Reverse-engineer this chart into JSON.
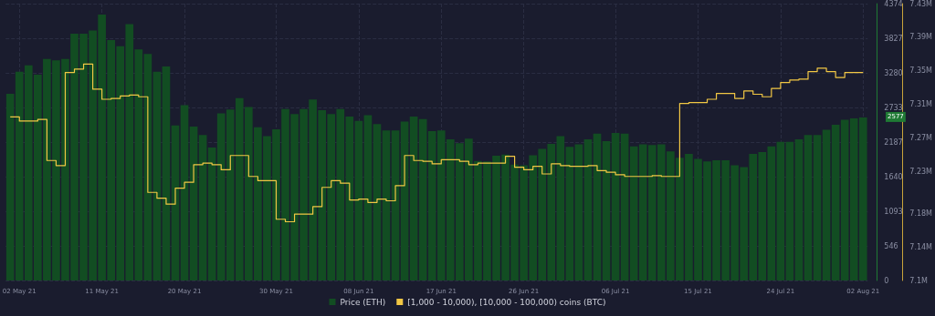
{
  "chart_data": {
    "type": "bar",
    "x": [
      "--05-01",
      "--05-02",
      "--05-03",
      "--05-04",
      "--05-05",
      "--05-06",
      "--05-07",
      "--05-08",
      "--05-09",
      "--05-10",
      "--05-11",
      "--05-12",
      "--05-13",
      "--05-14",
      "--05-15",
      "--05-16",
      "--05-17",
      "--05-18",
      "--05-19",
      "--05-20",
      "--05-21",
      "--05-22",
      "--05-23",
      "--05-24",
      "--05-25",
      "--05-26",
      "--05-27",
      "--05-28",
      "--05-29",
      "--05-30",
      "--05-31",
      "--06-01",
      "--06-02",
      "--06-03",
      "--06-04",
      "--06-05",
      "--06-06",
      "--06-07",
      "--06-08",
      "--06-09",
      "--06-10",
      "--06-11",
      "--06-12",
      "--06-13",
      "--06-14",
      "--06-15",
      "--06-16",
      "--06-17",
      "--06-18",
      "--06-19",
      "--06-20",
      "--06-21",
      "--06-22",
      "--06-23",
      "--06-24",
      "--06-25",
      "--06-26",
      "--06-27",
      "--06-28",
      "--06-29",
      "--06-30",
      "--07-01",
      "--07-02",
      "--07-03",
      "--07-04",
      "--07-05",
      "--07-06",
      "--07-07",
      "--07-08",
      "--07-09",
      "--07-10",
      "--07-11",
      "--07-12",
      "--07-13",
      "--07-14",
      "--07-15",
      "--07-16",
      "--07-17",
      "--07-18",
      "--07-19",
      "--07-20",
      "--07-21",
      "--07-22",
      "--07-23",
      "--07-24",
      "--07-25",
      "--07-26",
      "--07-27",
      "--07-28",
      "--07-29",
      "--07-30",
      "--07-31",
      "--08-01",
      "--08-02"
    ],
    "series": [
      {
        "name": "Price (ETH)",
        "color": "#124d22",
        "values": [
          2950,
          3300,
          3400,
          3250,
          3500,
          3480,
          3500,
          3900,
          3900,
          3950,
          4200,
          3800,
          3700,
          4050,
          3650,
          3580,
          3300,
          3380,
          2450,
          2770,
          2430,
          2300,
          2100,
          2640,
          2700,
          2880,
          2740,
          2420,
          2280,
          2390,
          2710,
          2630,
          2710,
          2860,
          2690,
          2630,
          2710,
          2590,
          2520,
          2610,
          2470,
          2370,
          2370,
          2510,
          2590,
          2550,
          2360,
          2370,
          2230,
          2170,
          2240,
          1890,
          1880,
          1970,
          1990,
          1830,
          1820,
          1980,
          2080,
          2160,
          2280,
          2110,
          2150,
          2230,
          2320,
          2200,
          2330,
          2320,
          2120,
          2150,
          2140,
          2150,
          2040,
          1940,
          2000,
          1920,
          1880,
          1900,
          1900,
          1820,
          1790,
          2000,
          2030,
          2120,
          2190,
          2190,
          2230,
          2300,
          2300,
          2380,
          2460,
          2540,
          2560,
          2577
        ]
      },
      {
        "name": "[1,000 - 10,000), [10,000 - 100,000) coins (BTC)",
        "type": "step",
        "axis": "y2",
        "color": "#f2c744",
        "x": [
          "--05-01",
          "--05-02",
          "--05-04",
          "--05-05",
          "--05-06",
          "--05-07",
          "--05-08",
          "--05-09",
          "--05-10",
          "--05-11",
          "--05-12",
          "--05-13",
          "--05-14",
          "--05-15",
          "--05-16",
          "--05-17",
          "--05-18",
          "--05-19",
          "--05-20",
          "--05-21",
          "--05-22",
          "--05-23",
          "--05-24",
          "--05-25",
          "--05-27",
          "--05-28",
          "--05-30",
          "--05-31",
          "--06-01",
          "--06-03",
          "--06-04",
          "--06-05",
          "--06-06",
          "--06-07",
          "--06-08",
          "--06-09",
          "--06-10",
          "--06-11",
          "--06-12",
          "--06-13",
          "--06-14",
          "--06-15",
          "--06-16",
          "--06-17",
          "--06-19",
          "--06-20",
          "--06-21",
          "--06-24",
          "--06-25",
          "--06-26",
          "--06-27",
          "--06-28",
          "--06-29",
          "--06-30",
          "--07-01",
          "--07-03",
          "--07-04",
          "--07-05",
          "--07-06",
          "--07-07",
          "--07-10",
          "--07-11",
          "--07-13",
          "--07-14",
          "--07-16",
          "--07-17",
          "--07-19",
          "--07-20",
          "--07-21",
          "--07-22",
          "--07-23",
          "--07-24",
          "--07-25",
          "--07-26",
          "--07-27",
          "--07-28",
          "--07-29",
          "--07-30",
          "--07-31",
          "--08-02"
        ],
        "values": [
          7.295,
          7.29,
          7.292,
          7.243,
          7.237,
          7.348,
          7.352,
          7.358,
          7.328,
          7.316,
          7.317,
          7.32,
          7.321,
          7.319,
          7.205,
          7.198,
          7.191,
          7.21,
          7.217,
          7.238,
          7.24,
          7.238,
          7.232,
          7.249,
          7.224,
          7.219,
          7.173,
          7.17,
          7.179,
          7.188,
          7.211,
          7.219,
          7.216,
          7.196,
          7.197,
          7.193,
          7.197,
          7.195,
          7.213,
          7.249,
          7.243,
          7.242,
          7.239,
          7.244,
          7.242,
          7.238,
          7.24,
          7.248,
          7.235,
          7.232,
          7.236,
          7.227,
          7.239,
          7.237,
          7.236,
          7.237,
          7.231,
          7.229,
          7.226,
          7.224,
          7.225,
          7.224,
          7.311,
          7.312,
          7.316,
          7.323,
          7.317,
          7.326,
          7.322,
          7.319,
          7.329,
          7.336,
          7.339,
          7.34,
          7.349,
          7.353,
          7.349,
          7.342,
          7.348,
          7.348
        ]
      }
    ],
    "xlim": [
      "--04-30T12:00",
      "--08-02T12:00"
    ],
    "xticks": [
      {
        "value": "--05-02",
        "label": "02 May 21"
      },
      {
        "value": "--05-11",
        "label": "11 May 21"
      },
      {
        "value": "--05-20",
        "label": "20 May 21"
      },
      {
        "value": "--05-30",
        "label": "30 May 21"
      },
      {
        "value": "--06-08",
        "label": "08 Jun 21"
      },
      {
        "value": "--06-17",
        "label": "17 Jun 21"
      },
      {
        "value": "--06-26",
        "label": "26 Jun 21"
      },
      {
        "value": "--07-06",
        "label": "06 Jul 21"
      },
      {
        "value": "--07-15",
        "label": "15 Jul 21"
      },
      {
        "value": "--07-24",
        "label": "24 Jul 21"
      },
      {
        "value": "--08-02",
        "label": "02 Aug 21"
      }
    ],
    "ylim": [
      0,
      4374
    ],
    "yticks": [
      0,
      546,
      1093,
      1640,
      2187,
      2733,
      3280,
      3827,
      4374
    ],
    "y2lim": [
      7.1,
      7.43
    ],
    "y2ticks": [
      {
        "value": 7.1,
        "label": "7.1M"
      },
      {
        "value": 7.14,
        "label": "7.14M"
      },
      {
        "value": 7.18,
        "label": "7.18M"
      },
      {
        "value": 7.23,
        "label": "7.23M"
      },
      {
        "value": 7.27,
        "label": "7.27M"
      },
      {
        "value": 7.31,
        "label": "7.31M"
      },
      {
        "value": 7.35,
        "label": "7.35M"
      },
      {
        "value": 7.39,
        "label": "7.39M"
      },
      {
        "value": 7.43,
        "label": "7.43M"
      }
    ],
    "annotations": [
      "2577"
    ],
    "grid": true,
    "legend": "bottom"
  }
}
